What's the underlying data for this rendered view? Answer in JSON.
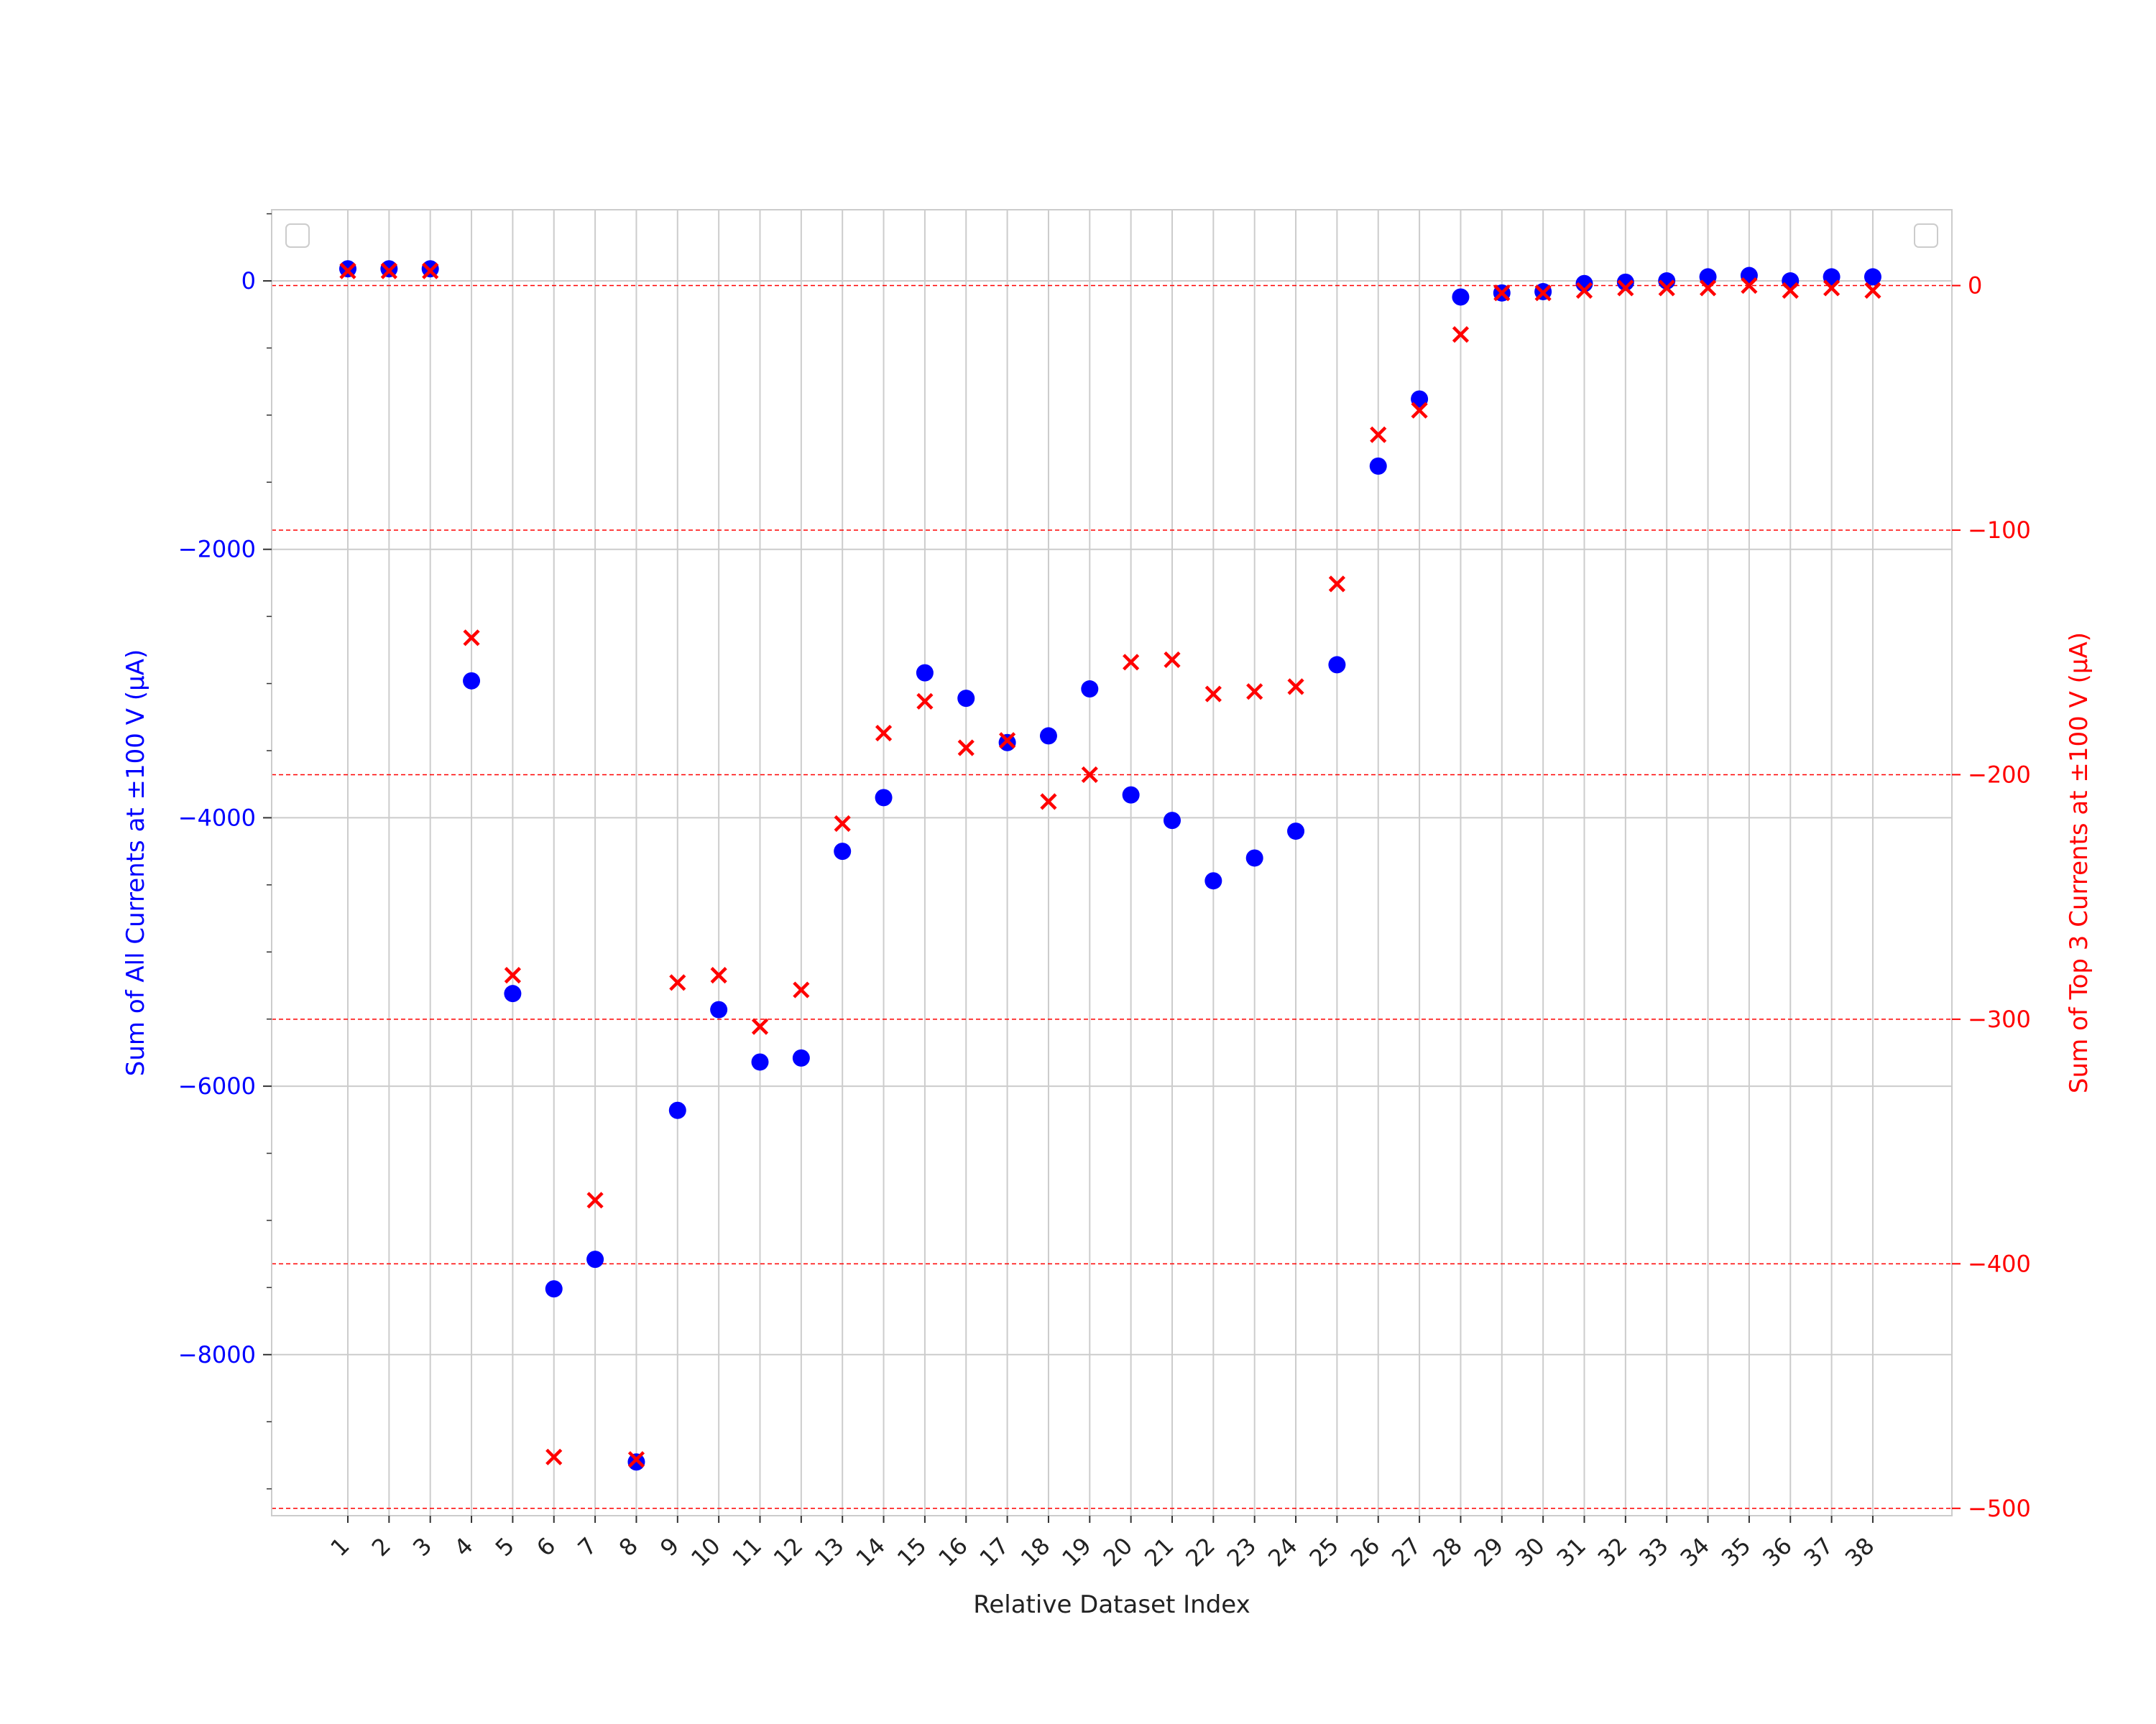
{
  "chart_data": {
    "type": "scatter",
    "title": "",
    "xlabel": "Relative Dataset Index",
    "ylabel_left": "Sum of All Currents at ±100 V (µA)",
    "ylabel_right": "Sum of Top 3 Currents at ±100 V (µA)",
    "categories": [
      "1",
      "2",
      "3",
      "4",
      "5",
      "6",
      "7",
      "8",
      "9",
      "10",
      "11",
      "12",
      "13",
      "14",
      "15",
      "16",
      "17",
      "18",
      "19",
      "20",
      "21",
      "22",
      "23",
      "24",
      "25",
      "26",
      "27",
      "28",
      "29",
      "30",
      "31",
      "32",
      "33",
      "34",
      "35",
      "36",
      "37",
      "38"
    ],
    "ylim_left": [
      -9200,
      530
    ],
    "ylim_right": [
      -503,
      31
    ],
    "yticks_left": [
      0,
      -2000,
      -4000,
      -6000,
      -8000
    ],
    "yticks_right": [
      0,
      -100,
      -200,
      -300,
      -400,
      -500
    ],
    "grid": true,
    "legend": "empty boxes top-left and top-right",
    "colors": {
      "left_axis": "#0000ff",
      "right_axis": "#ff0000",
      "grid": "#cccccc",
      "right_grid": "#ff0000"
    },
    "series": [
      {
        "axis": "left",
        "marker": "circle",
        "color": "#0000ff",
        "values": [
          90,
          90,
          90,
          -2980,
          -5310,
          -7510,
          -7290,
          -8800,
          -6180,
          -5430,
          -5820,
          -5790,
          -4250,
          -3850,
          -2920,
          -3110,
          -3440,
          -3390,
          -3040,
          -3830,
          -4020,
          -4470,
          -4300,
          -4100,
          -2860,
          -1380,
          -880,
          -120,
          -90,
          -80,
          -20,
          -10,
          0,
          30,
          40,
          0,
          30,
          30
        ]
      },
      {
        "axis": "right",
        "marker": "x",
        "color": "#ff0000",
        "values": [
          6,
          6,
          6,
          -144,
          -282,
          -479,
          -374,
          -480,
          -285,
          -282,
          -303,
          -288,
          -220,
          -183,
          -170,
          -189,
          -186,
          -211,
          -200,
          -154,
          -153,
          -167,
          -166,
          -164,
          -122,
          -61,
          -51,
          -20,
          -3,
          -3,
          -2,
          -1,
          -1,
          -1,
          0,
          -2,
          -1,
          -2
        ]
      }
    ]
  }
}
